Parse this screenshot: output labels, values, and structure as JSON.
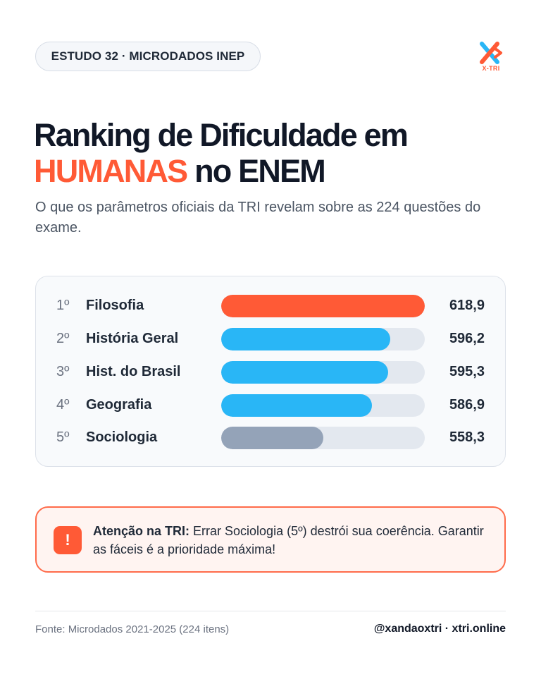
{
  "badge": "ESTUDO 32 · MICRODADOS INEP",
  "logo": {
    "text": "X-TRI",
    "icon": "x-tri-logo-icon",
    "colors": [
      "#ff5a36",
      "#29b6f6"
    ]
  },
  "title": {
    "line1": "Ranking de Dificuldade em",
    "accent": "HUMANAS",
    "rest": " no ENEM"
  },
  "subtitle": "O que os parâmetros oficiais da TRI revelam sobre as 224 questões do exame.",
  "chart_data": {
    "type": "bar",
    "orientation": "horizontal",
    "ranks": [
      "1º",
      "2º",
      "3º",
      "4º",
      "5º"
    ],
    "categories": [
      "Filosofia",
      "História Geral",
      "Hist. do Brasil",
      "Geografia",
      "Sociologia"
    ],
    "values": [
      618.9,
      596.2,
      595.3,
      586.9,
      558.3
    ],
    "value_labels": [
      "618,9",
      "596,2",
      "595,3",
      "586,9",
      "558,3"
    ],
    "fill_fractions": [
      1.0,
      0.83,
      0.82,
      0.74,
      0.5
    ],
    "bar_colors": [
      "#ff5a36",
      "#29b6f6",
      "#29b6f6",
      "#29b6f6",
      "#94a3b8"
    ],
    "track_color": "#e3e8ef"
  },
  "alert": {
    "icon": "exclamation-icon",
    "bold": "Atenção na TRI:",
    "text": " Errar Sociologia (5º) destrói sua coerência. Garantir as fáceis é a prioridade máxima!"
  },
  "footer": {
    "source": "Fonte: Microdados 2021-2025 (224 itens)",
    "handle": "@xandaoxtri · xtri.online"
  }
}
